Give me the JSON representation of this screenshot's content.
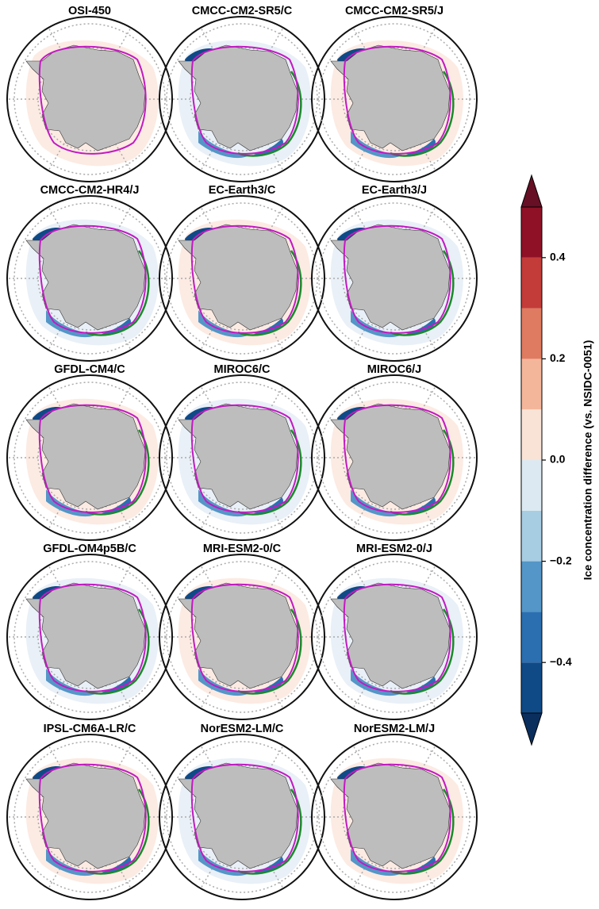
{
  "panels": [
    {
      "title": "OSI-450"
    },
    {
      "title": "CMCC-CM2-SR5/C"
    },
    {
      "title": "CMCC-CM2-SR5/J"
    },
    {
      "title": "CMCC-CM2-HR4/J"
    },
    {
      "title": "EC-Earth3/C"
    },
    {
      "title": "EC-Earth3/J"
    },
    {
      "title": "GFDL-CM4/C"
    },
    {
      "title": "MIROC6/C"
    },
    {
      "title": "MIROC6/J"
    },
    {
      "title": "GFDL-OM4p5B/C"
    },
    {
      "title": "MRI-ESM2-0/C"
    },
    {
      "title": "MRI-ESM2-0/J"
    },
    {
      "title": "IPSL-CM6A-LR/C"
    },
    {
      "title": "NorESM2-LM/C"
    },
    {
      "title": "NorESM2-LM/J"
    }
  ],
  "colorbar": {
    "label": "Ice concentration difference (vs. NSIDC-0051)",
    "lim": [
      -0.5,
      0.5
    ],
    "ticks": [
      {
        "value": -0.4,
        "label": "−0.4"
      },
      {
        "value": -0.2,
        "label": "−0.2"
      },
      {
        "value": 0,
        "label": "0.0"
      },
      0.2,
      0.4
    ],
    "colors": [
      "#0f4a87",
      "#2c6fb0",
      "#5496c7",
      "#a7cde3",
      "#dde9f2",
      "#f9e3d7",
      "#f4b69b",
      "#df7b60",
      "#c33c3a",
      "#8f1126"
    ],
    "extend_colors": [
      "#0a2f5e",
      "#670f24"
    ]
  }
}
